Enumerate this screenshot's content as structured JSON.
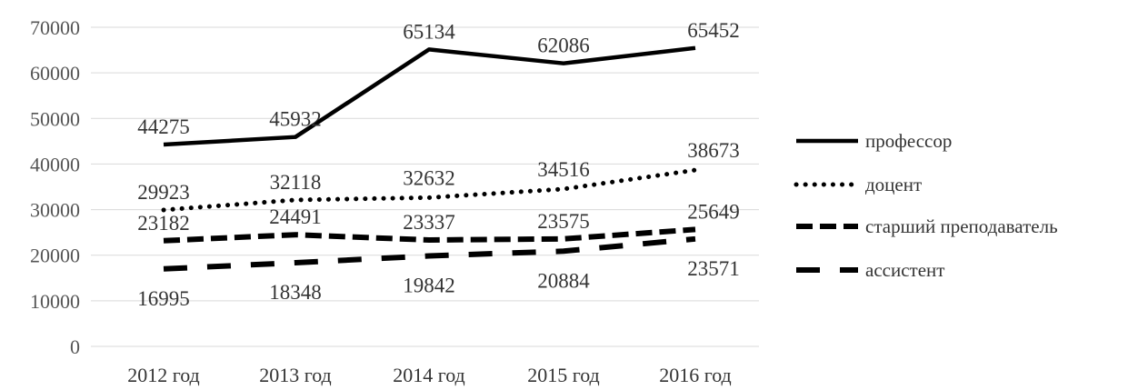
{
  "chart_data": {
    "type": "line",
    "categories": [
      "2012 год",
      "2013 год",
      "2014 год",
      "2015 год",
      "2016 год"
    ],
    "ylim": [
      0,
      70000
    ],
    "yticks": [
      0,
      10000,
      20000,
      30000,
      40000,
      50000,
      60000,
      70000
    ],
    "grid": true,
    "legend_position": "right",
    "series": [
      {
        "name": "профессор",
        "values": [
          44275,
          45932,
          65134,
          62086,
          65452
        ],
        "style": "solid",
        "color": "#000000"
      },
      {
        "name": "доцент",
        "values": [
          29923,
          32118,
          32632,
          34516,
          38673
        ],
        "style": "dotted",
        "color": "#000000"
      },
      {
        "name": "старший преподаватель",
        "values": [
          23182,
          24491,
          23337,
          23575,
          25649
        ],
        "style": "dashed",
        "color": "#000000"
      },
      {
        "name": "ассистент",
        "values": [
          16995,
          18348,
          19842,
          20884,
          23571
        ],
        "style": "long-dashed",
        "color": "#000000"
      }
    ]
  }
}
